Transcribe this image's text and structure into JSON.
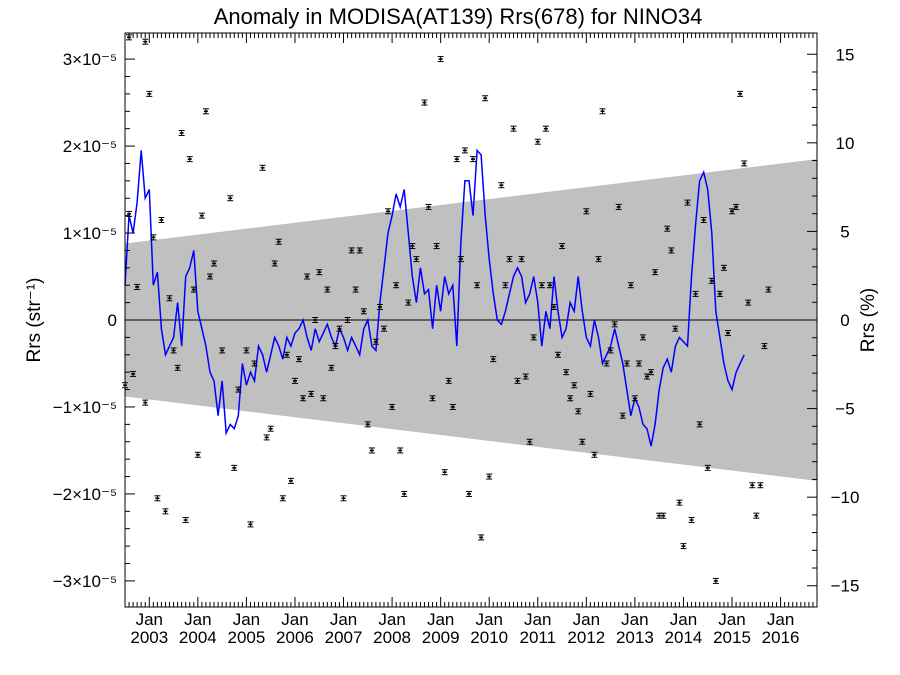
{
  "chart_data": {
    "type": "scatter",
    "title": "Anomaly in MODISA(AT139) Rrs(678) for NINO34",
    "ylabel_left": "Rrs (str⁻¹)",
    "ylabel_right": "Rrs (%)",
    "x_range": [
      "2002-07",
      "2016-10"
    ],
    "ylim_left": [
      -3.3e-05,
      3.3e-05
    ],
    "ylim_right": [
      -16.2,
      16.2
    ],
    "y_ticks_left": [
      {
        "value": 3e-05,
        "label": "3×10⁻⁵"
      },
      {
        "value": 2e-05,
        "label": "2×10⁻⁵"
      },
      {
        "value": 1e-05,
        "label": "1×10⁻⁵"
      },
      {
        "value": 0,
        "label": "0"
      },
      {
        "value": -1e-05,
        "label": "−1×10⁻⁵"
      },
      {
        "value": -2e-05,
        "label": "−2×10⁻⁵"
      },
      {
        "value": -3e-05,
        "label": "−3×10⁻⁵"
      }
    ],
    "y_ticks_right": [
      15,
      10,
      5,
      0,
      -5,
      -10,
      -15
    ],
    "x_month_label": "Jan",
    "x_year_labels": [
      "2003",
      "2004",
      "2005",
      "2006",
      "2007",
      "2008",
      "2009",
      "2010",
      "2011",
      "2012",
      "2013",
      "2014",
      "2015",
      "2016"
    ],
    "zero_line": true,
    "grid": false,
    "shaded_band": {
      "color": "#c0c0c0",
      "upper": [
        {
          "x": "2002-07",
          "y": 8.8e-06
        },
        {
          "x": "2016-10",
          "y": 1.85e-05
        }
      ],
      "lower": [
        {
          "x": "2002-07",
          "y": -8.8e-06
        },
        {
          "x": "2016-10",
          "y": -1.85e-05
        }
      ]
    },
    "series": [
      {
        "type": "line",
        "color": "#0000ff",
        "x_start": "2002-07",
        "step": "month",
        "y": [
          4e-06,
          1.2e-05,
          1e-05,
          1.35e-05,
          1.95e-05,
          1.4e-05,
          1.5e-05,
          4e-06,
          5.5e-06,
          -1e-06,
          -4e-06,
          -3e-06,
          -2e-06,
          2e-06,
          -3e-06,
          5e-06,
          6e-06,
          8e-06,
          1e-06,
          -1e-06,
          -3e-06,
          -6e-06,
          -7e-06,
          -1.1e-05,
          -7e-06,
          -1.3e-05,
          -1.2e-05,
          -1.25e-05,
          -1.1e-05,
          -5e-06,
          -7.5e-06,
          -6e-06,
          -7e-06,
          -3e-06,
          -4e-06,
          -6e-06,
          -4e-06,
          -2e-06,
          -3e-06,
          -4.5e-06,
          -2e-06,
          -3e-06,
          -1.5e-06,
          -1e-06,
          0.0,
          -2e-06,
          -3.5e-06,
          -1e-06,
          -2.5e-06,
          -1.5e-06,
          -5e-07,
          -2e-06,
          -3e-06,
          -1e-06,
          -2e-06,
          -3.5e-06,
          -2e-06,
          -3e-06,
          -4e-06,
          -1e-06,
          0.0,
          -3e-06,
          -3.5e-06,
          2e-06,
          6e-06,
          1e-05,
          1.2e-05,
          1.45e-05,
          1.3e-05,
          1.5e-05,
          1e-05,
          5e-06,
          2e-06,
          6e-06,
          3e-06,
          3.5e-06,
          -1e-06,
          4e-06,
          1e-06,
          5e-06,
          3e-06,
          4e-06,
          -3e-06,
          9e-06,
          1.6e-05,
          1.6e-05,
          1.2e-05,
          1.95e-05,
          1.9e-05,
          1.2e-05,
          7e-06,
          3e-06,
          0.0,
          -5e-07,
          1e-06,
          3e-06,
          5e-06,
          6e-06,
          5e-06,
          2e-06,
          3e-06,
          5e-06,
          2e-06,
          -3e-06,
          1e-06,
          -1e-06,
          5e-06,
          1e-06,
          -2e-06,
          -1e-06,
          2e-06,
          1e-06,
          5e-06,
          1e-06,
          -2e-06,
          -3e-06,
          0.0,
          -2e-06,
          -5e-06,
          -4e-06,
          -3e-06,
          -1e-06,
          -3e-06,
          -5e-06,
          -8e-06,
          -1.1e-05,
          -9e-06,
          -1e-05,
          -1.2e-05,
          -1.25e-05,
          -1.45e-05,
          -1.2e-05,
          -8e-06,
          -5.5e-06,
          -4.5e-06,
          -6e-06,
          -3e-06,
          -2e-06,
          -2.5e-06,
          -3e-06,
          5e-06,
          1.1e-05,
          1.6e-05,
          1.7e-05,
          1.5e-05,
          1e-05,
          1e-06,
          -2e-06,
          -5e-06,
          -7e-06,
          -8e-06,
          -6e-06,
          -5e-06,
          -4e-06
        ]
      },
      {
        "type": "errorbar-points",
        "color": "#000000",
        "error_halfwidth": 2e-07,
        "points": [
          {
            "x": "2002-07",
            "y": -7.5e-06
          },
          {
            "x": "2002-08",
            "y": 3.25e-05
          },
          {
            "x": "2002-08",
            "y": 1.22e-05
          },
          {
            "x": "2002-09",
            "y": -6.2e-06
          },
          {
            "x": "2002-10",
            "y": 3.8e-06
          },
          {
            "x": "2002-12",
            "y": 3.2e-05
          },
          {
            "x": "2002-12",
            "y": -9.5e-06
          },
          {
            "x": "2003-01",
            "y": 2.6e-05
          },
          {
            "x": "2003-02",
            "y": 9.5e-06
          },
          {
            "x": "2003-03",
            "y": -2.05e-05
          },
          {
            "x": "2003-04",
            "y": 1.15e-05
          },
          {
            "x": "2003-05",
            "y": -2.2e-05
          },
          {
            "x": "2003-06",
            "y": 2.5e-06
          },
          {
            "x": "2003-07",
            "y": -3.5e-06
          },
          {
            "x": "2003-08",
            "y": -5.5e-06
          },
          {
            "x": "2003-09",
            "y": 2.15e-05
          },
          {
            "x": "2003-10",
            "y": -2.3e-05
          },
          {
            "x": "2003-11",
            "y": 1.85e-05
          },
          {
            "x": "2003-12",
            "y": 3.5e-06
          },
          {
            "x": "2004-01",
            "y": -1.55e-05
          },
          {
            "x": "2004-02",
            "y": 1.2e-05
          },
          {
            "x": "2004-03",
            "y": 2.4e-05
          },
          {
            "x": "2004-04",
            "y": 5e-06
          },
          {
            "x": "2004-05",
            "y": 6.5e-06
          },
          {
            "x": "2004-07",
            "y": -3.5e-06
          },
          {
            "x": "2004-09",
            "y": 1.4e-05
          },
          {
            "x": "2004-10",
            "y": -1.7e-05
          },
          {
            "x": "2004-11",
            "y": -8e-06
          },
          {
            "x": "2005-01",
            "y": -3.5e-06
          },
          {
            "x": "2005-02",
            "y": -2.35e-05
          },
          {
            "x": "2005-03",
            "y": -5e-06
          },
          {
            "x": "2005-05",
            "y": 1.75e-05
          },
          {
            "x": "2005-06",
            "y": -1.35e-05
          },
          {
            "x": "2005-07",
            "y": -1.25e-05
          },
          {
            "x": "2005-08",
            "y": 6.5e-06
          },
          {
            "x": "2005-09",
            "y": 9e-06
          },
          {
            "x": "2005-10",
            "y": -2.05e-05
          },
          {
            "x": "2005-11",
            "y": -4e-06
          },
          {
            "x": "2005-12",
            "y": -1.85e-05
          },
          {
            "x": "2006-01",
            "y": -7e-06
          },
          {
            "x": "2006-02",
            "y": -4.5e-06
          },
          {
            "x": "2006-03",
            "y": -9e-06
          },
          {
            "x": "2006-04",
            "y": 5e-06
          },
          {
            "x": "2006-05",
            "y": -8.5e-06
          },
          {
            "x": "2006-06",
            "y": 0.0
          },
          {
            "x": "2006-07",
            "y": 5.5e-06
          },
          {
            "x": "2006-08",
            "y": -9e-06
          },
          {
            "x": "2006-09",
            "y": 3.5e-06
          },
          {
            "x": "2006-10",
            "y": -5.5e-06
          },
          {
            "x": "2006-11",
            "y": -3e-06
          },
          {
            "x": "2006-12",
            "y": -1e-06
          },
          {
            "x": "2007-01",
            "y": -2.05e-05
          },
          {
            "x": "2007-02",
            "y": 0.0
          },
          {
            "x": "2007-03",
            "y": 8e-06
          },
          {
            "x": "2007-04",
            "y": 3.5e-06
          },
          {
            "x": "2007-05",
            "y": 8e-06
          },
          {
            "x": "2007-06",
            "y": 1e-06
          },
          {
            "x": "2007-07",
            "y": -1.2e-05
          },
          {
            "x": "2007-08",
            "y": -1.5e-05
          },
          {
            "x": "2007-09",
            "y": -2.5e-06
          },
          {
            "x": "2007-10",
            "y": 1.5e-06
          },
          {
            "x": "2007-11",
            "y": -1e-06
          },
          {
            "x": "2007-12",
            "y": 1.25e-05
          },
          {
            "x": "2008-01",
            "y": -1e-05
          },
          {
            "x": "2008-02",
            "y": 4e-06
          },
          {
            "x": "2008-03",
            "y": -1.5e-05
          },
          {
            "x": "2008-04",
            "y": -2e-05
          },
          {
            "x": "2008-05",
            "y": 2e-06
          },
          {
            "x": "2008-06",
            "y": 8.5e-06
          },
          {
            "x": "2008-07",
            "y": 7e-06
          },
          {
            "x": "2008-09",
            "y": 2.5e-05
          },
          {
            "x": "2008-10",
            "y": 1.3e-05
          },
          {
            "x": "2008-11",
            "y": -9e-06
          },
          {
            "x": "2008-12",
            "y": 8.5e-06
          },
          {
            "x": "2009-01",
            "y": 3e-05
          },
          {
            "x": "2009-02",
            "y": -1.75e-05
          },
          {
            "x": "2009-03",
            "y": -7e-06
          },
          {
            "x": "2009-04",
            "y": -1e-05
          },
          {
            "x": "2009-05",
            "y": 1.85e-05
          },
          {
            "x": "2009-06",
            "y": 7e-06
          },
          {
            "x": "2009-07",
            "y": 1.95e-05
          },
          {
            "x": "2009-08",
            "y": -2e-05
          },
          {
            "x": "2009-09",
            "y": 1.85e-05
          },
          {
            "x": "2009-10",
            "y": 4e-06
          },
          {
            "x": "2009-11",
            "y": -2.5e-05
          },
          {
            "x": "2009-12",
            "y": 2.55e-05
          },
          {
            "x": "2010-01",
            "y": -1.8e-05
          },
          {
            "x": "2010-02",
            "y": -4.5e-06
          },
          {
            "x": "2010-04",
            "y": 1.55e-05
          },
          {
            "x": "2010-05",
            "y": 4e-06
          },
          {
            "x": "2010-06",
            "y": 7e-06
          },
          {
            "x": "2010-07",
            "y": 2.2e-05
          },
          {
            "x": "2010-08",
            "y": -7e-06
          },
          {
            "x": "2010-09",
            "y": 7e-06
          },
          {
            "x": "2010-10",
            "y": -6.5e-06
          },
          {
            "x": "2010-11",
            "y": -1.4e-05
          },
          {
            "x": "2010-12",
            "y": -2e-06
          },
          {
            "x": "2011-01",
            "y": 2.05e-05
          },
          {
            "x": "2011-02",
            "y": 4e-06
          },
          {
            "x": "2011-03",
            "y": 2.2e-05
          },
          {
            "x": "2011-04",
            "y": 4e-06
          },
          {
            "x": "2011-05",
            "y": 1.5e-06
          },
          {
            "x": "2011-06",
            "y": -4e-06
          },
          {
            "x": "2011-07",
            "y": 8.5e-06
          },
          {
            "x": "2011-08",
            "y": -6e-06
          },
          {
            "x": "2011-09",
            "y": -9e-06
          },
          {
            "x": "2011-10",
            "y": -7.5e-06
          },
          {
            "x": "2011-11",
            "y": -1.05e-05
          },
          {
            "x": "2011-12",
            "y": -1.4e-05
          },
          {
            "x": "2012-01",
            "y": 1.25e-05
          },
          {
            "x": "2012-02",
            "y": -8.5e-06
          },
          {
            "x": "2012-03",
            "y": -1.55e-05
          },
          {
            "x": "2012-04",
            "y": 7e-06
          },
          {
            "x": "2012-05",
            "y": 2.4e-05
          },
          {
            "x": "2012-06",
            "y": -5e-06
          },
          {
            "x": "2012-07",
            "y": -3.5e-06
          },
          {
            "x": "2012-08",
            "y": -5e-07
          },
          {
            "x": "2012-09",
            "y": 1.3e-05
          },
          {
            "x": "2012-10",
            "y": -1.1e-05
          },
          {
            "x": "2012-11",
            "y": -5e-06
          },
          {
            "x": "2012-12",
            "y": 4e-06
          },
          {
            "x": "2013-01",
            "y": -9e-06
          },
          {
            "x": "2013-02",
            "y": -5e-06
          },
          {
            "x": "2013-03",
            "y": -2e-06
          },
          {
            "x": "2013-04",
            "y": -6.5e-06
          },
          {
            "x": "2013-05",
            "y": -6e-06
          },
          {
            "x": "2013-06",
            "y": 5.5e-06
          },
          {
            "x": "2013-07",
            "y": -2.25e-05
          },
          {
            "x": "2013-08",
            "y": -2.25e-05
          },
          {
            "x": "2013-09",
            "y": 1.05e-05
          },
          {
            "x": "2013-10",
            "y": 8e-06
          },
          {
            "x": "2013-11",
            "y": -1e-06
          },
          {
            "x": "2013-12",
            "y": -2.1e-05
          },
          {
            "x": "2014-01",
            "y": -2.6e-05
          },
          {
            "x": "2014-02",
            "y": 1.35e-05
          },
          {
            "x": "2014-03",
            "y": -2.3e-05
          },
          {
            "x": "2014-04",
            "y": 3e-06
          },
          {
            "x": "2014-05",
            "y": -1.2e-05
          },
          {
            "x": "2014-06",
            "y": 1.15e-05
          },
          {
            "x": "2014-07",
            "y": -1.7e-05
          },
          {
            "x": "2014-08",
            "y": 4.5e-06
          },
          {
            "x": "2014-09",
            "y": -3e-05
          },
          {
            "x": "2014-10",
            "y": 3e-06
          },
          {
            "x": "2014-11",
            "y": 6e-06
          },
          {
            "x": "2014-12",
            "y": -1.5e-06
          },
          {
            "x": "2015-01",
            "y": 1.25e-05
          },
          {
            "x": "2015-02",
            "y": 1.3e-05
          },
          {
            "x": "2015-03",
            "y": 2.6e-05
          },
          {
            "x": "2015-04",
            "y": 1.8e-05
          },
          {
            "x": "2015-05",
            "y": 2e-06
          },
          {
            "x": "2015-06",
            "y": -1.9e-05
          },
          {
            "x": "2015-07",
            "y": -2.25e-05
          },
          {
            "x": "2015-08",
            "y": -1.9e-05
          },
          {
            "x": "2015-09",
            "y": -3e-06
          },
          {
            "x": "2015-10",
            "y": 3.5e-06
          }
        ]
      }
    ]
  }
}
